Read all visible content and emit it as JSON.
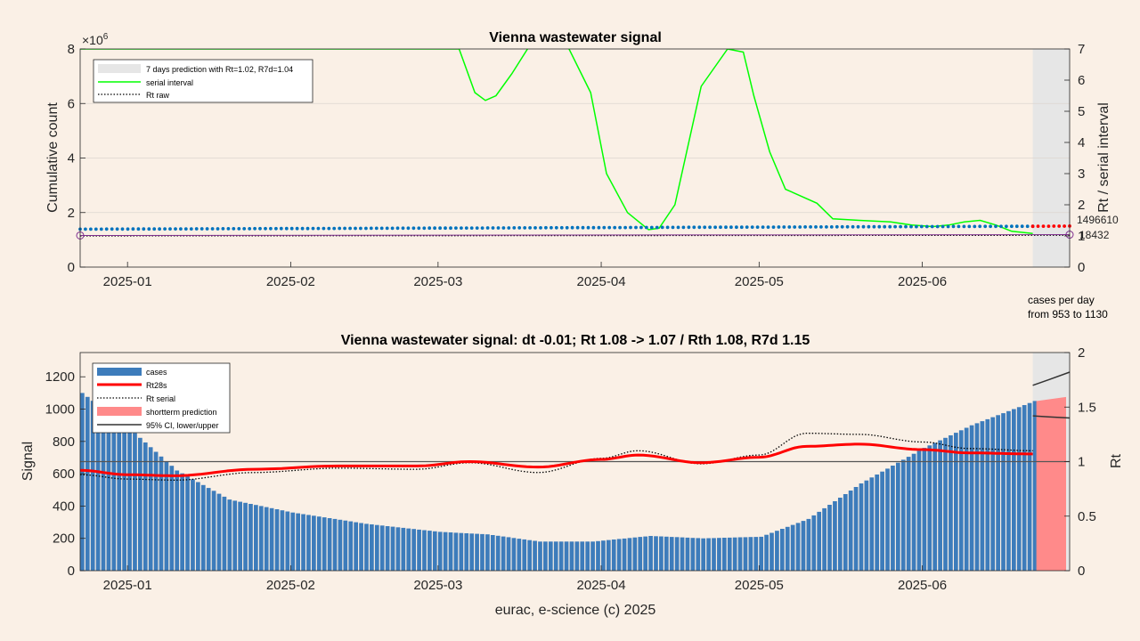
{
  "chart_data": [
    {
      "type": "line",
      "title": "Vienna wastewater signal",
      "ylabel": "Cumulative count",
      "y2label": "Rt / serial interval",
      "y_exponent": "×10",
      "y_exponent_power": "6",
      "ylim": [
        0,
        8000000
      ],
      "y2lim": [
        0,
        7
      ],
      "yticks": [
        0,
        2000000,
        4000000,
        6000000,
        8000000
      ],
      "ytick_labels": [
        "0",
        "2",
        "4",
        "6",
        "8"
      ],
      "y2ticks": [
        0,
        1,
        2,
        3,
        4,
        5,
        6,
        7
      ],
      "y2tick_labels": [
        "0",
        "1",
        "2",
        "3",
        "4",
        "5",
        "6",
        "7"
      ],
      "xlim": [
        "2024-12-23",
        "2025-06-29"
      ],
      "xticks": [
        "2025-01-01",
        "2025-02-01",
        "2025-03-01",
        "2025-04-01",
        "2025-05-01",
        "2025-06-01"
      ],
      "xtick_labels": [
        "2025-01",
        "2025-02",
        "2025-03",
        "2025-04",
        "2025-05",
        "2025-06"
      ],
      "grid": "horizontal",
      "legend_position": "top-left",
      "legend": [
        "7 days prediction with Rt=1.02, R7d=1.04",
        "serial interval",
        "Rt raw"
      ],
      "prediction_window": [
        "2025-06-22",
        "2025-06-29"
      ],
      "series": [
        {
          "name": "serial interval",
          "axis": "right",
          "color": "#00FF00",
          "x": [
            "2024-12-23",
            "2025-03-05",
            "2025-03-08",
            "2025-03-10",
            "2025-03-12",
            "2025-03-15",
            "2025-03-18",
            "2025-03-20",
            "2025-03-25",
            "2025-03-30",
            "2025-04-02",
            "2025-04-06",
            "2025-04-10",
            "2025-04-12",
            "2025-04-15",
            "2025-04-20",
            "2025-04-25",
            "2025-04-28",
            "2025-04-30",
            "2025-05-03",
            "2025-05-06",
            "2025-05-12",
            "2025-05-15",
            "2025-05-20",
            "2025-05-26",
            "2025-05-30",
            "2025-06-03",
            "2025-06-06",
            "2025-06-09",
            "2025-06-12",
            "2025-06-15",
            "2025-06-18",
            "2025-06-22"
          ],
          "y": [
            7,
            7,
            5.6,
            5.35,
            5.5,
            6.2,
            7,
            7.5,
            7.3,
            5.6,
            3.0,
            1.75,
            1.2,
            1.25,
            2.0,
            5.8,
            7,
            6.9,
            5.5,
            3.7,
            2.5,
            2.05,
            1.55,
            1.5,
            1.45,
            1.35,
            1.3,
            1.35,
            1.45,
            1.5,
            1.35,
            1.15,
            1.08
          ]
        },
        {
          "name": "Rt raw",
          "axis": "right",
          "color": "#000000",
          "x": [
            "2024-12-23",
            "2025-06-29"
          ],
          "y": [
            1.0,
            1.02
          ]
        },
        {
          "name": "cumulative",
          "axis": "left",
          "color": "#0072BD",
          "x": [
            "2024-12-23",
            "2025-06-22"
          ],
          "y": [
            1390000,
            1496610
          ]
        },
        {
          "name": "prediction",
          "axis": "left",
          "color": "#FF0000",
          "x": [
            "2025-06-22",
            "2025-06-29"
          ],
          "y": [
            1496610,
            1504000
          ]
        },
        {
          "name": "purple",
          "axis": "left",
          "color": "#7E2F8E",
          "x": [
            "2024-12-23",
            "2025-06-29"
          ],
          "y": [
            1160000,
            1190000
          ]
        }
      ],
      "annotations": [
        {
          "text": "1496610",
          "x": "2025-06-29",
          "y": 1760000
        },
        {
          "text": "18432",
          "x": "2025-06-29",
          "y": 1200000
        }
      ]
    },
    {
      "type": "bar",
      "title": "Vienna wastewater signal: dt -0.01; Rt 1.08 -> 1.07 / Rth 1.08, R7d 1.15",
      "xlabel": "eurac, e-science (c) 2025",
      "ylabel": "Signal",
      "y2label": "Rt",
      "ylim": [
        0,
        1350
      ],
      "y2lim": [
        0,
        2
      ],
      "yticks": [
        0,
        200,
        400,
        600,
        800,
        1000,
        1200
      ],
      "y2ticks": [
        0,
        0.5,
        1,
        1.5,
        2
      ],
      "y2tick_labels": [
        "0",
        "0.5",
        "1",
        "1.5",
        "2"
      ],
      "xlim": [
        "2024-12-23",
        "2025-06-29"
      ],
      "xticks": [
        "2025-01-01",
        "2025-02-01",
        "2025-03-01",
        "2025-04-01",
        "2025-05-01",
        "2025-06-01"
      ],
      "xtick_labels": [
        "2025-01",
        "2025-02",
        "2025-03",
        "2025-04",
        "2025-05",
        "2025-06"
      ],
      "legend_position": "top-left",
      "legend": [
        "cases",
        "Rt28s",
        "Rt serial",
        "shortterm prediction",
        "95% CI, lower/upper"
      ],
      "side_note": [
        "cases per day",
        "from 953 to 1130"
      ],
      "reference_line_rt": 1,
      "cases": {
        "x": [
          "2024-12-23",
          "2025-01-01",
          "2025-01-10",
          "2025-01-20",
          "2025-02-01",
          "2025-02-15",
          "2025-03-01",
          "2025-03-10",
          "2025-03-20",
          "2025-03-30",
          "2025-04-10",
          "2025-04-20",
          "2025-05-01",
          "2025-05-10",
          "2025-05-20",
          "2025-06-01",
          "2025-06-10",
          "2025-06-22"
        ],
        "y": [
          1100,
          880,
          620,
          440,
          360,
          290,
          240,
          225,
          180,
          180,
          215,
          200,
          210,
          320,
          540,
          760,
          900,
          1050
        ]
      },
      "prediction": {
        "x": [
          "2025-06-22",
          "2025-06-29"
        ],
        "y": [
          1050,
          1075
        ]
      },
      "series": [
        {
          "name": "Rt28s",
          "axis": "right",
          "color": "#FF0000",
          "x": [
            "2024-12-23",
            "2025-01-01",
            "2025-01-10",
            "2025-01-25",
            "2025-02-10",
            "2025-02-25",
            "2025-03-07",
            "2025-03-20",
            "2025-04-01",
            "2025-04-08",
            "2025-04-20",
            "2025-05-01",
            "2025-05-10",
            "2025-05-20",
            "2025-06-01",
            "2025-06-10",
            "2025-06-22"
          ],
          "y": [
            0.92,
            0.88,
            0.87,
            0.93,
            0.96,
            0.96,
            1.0,
            0.95,
            1.02,
            1.06,
            0.99,
            1.04,
            1.14,
            1.16,
            1.11,
            1.08,
            1.07
          ]
        },
        {
          "name": "Rt serial",
          "axis": "right",
          "color": "#000000",
          "x": [
            "2024-12-23",
            "2025-01-01",
            "2025-01-10",
            "2025-01-25",
            "2025-02-10",
            "2025-02-25",
            "2025-03-07",
            "2025-03-20",
            "2025-04-01",
            "2025-04-08",
            "2025-04-20",
            "2025-05-01",
            "2025-05-10",
            "2025-05-20",
            "2025-06-01",
            "2025-06-10",
            "2025-06-22"
          ],
          "y": [
            0.88,
            0.84,
            0.83,
            0.9,
            0.94,
            0.93,
            0.99,
            0.9,
            1.03,
            1.1,
            0.98,
            1.06,
            1.26,
            1.25,
            1.18,
            1.12,
            1.1
          ]
        },
        {
          "name": "95% CI upper",
          "axis": "right",
          "color": "#333333",
          "x": [
            "2025-06-22",
            "2025-06-25",
            "2025-06-29"
          ],
          "y": [
            1.7,
            1.75,
            1.82
          ]
        },
        {
          "name": "95% CI lower",
          "axis": "right",
          "color": "#333333",
          "x": [
            "2025-06-22",
            "2025-06-25",
            "2025-06-29"
          ],
          "y": [
            1.42,
            1.41,
            1.4
          ]
        }
      ]
    }
  ]
}
